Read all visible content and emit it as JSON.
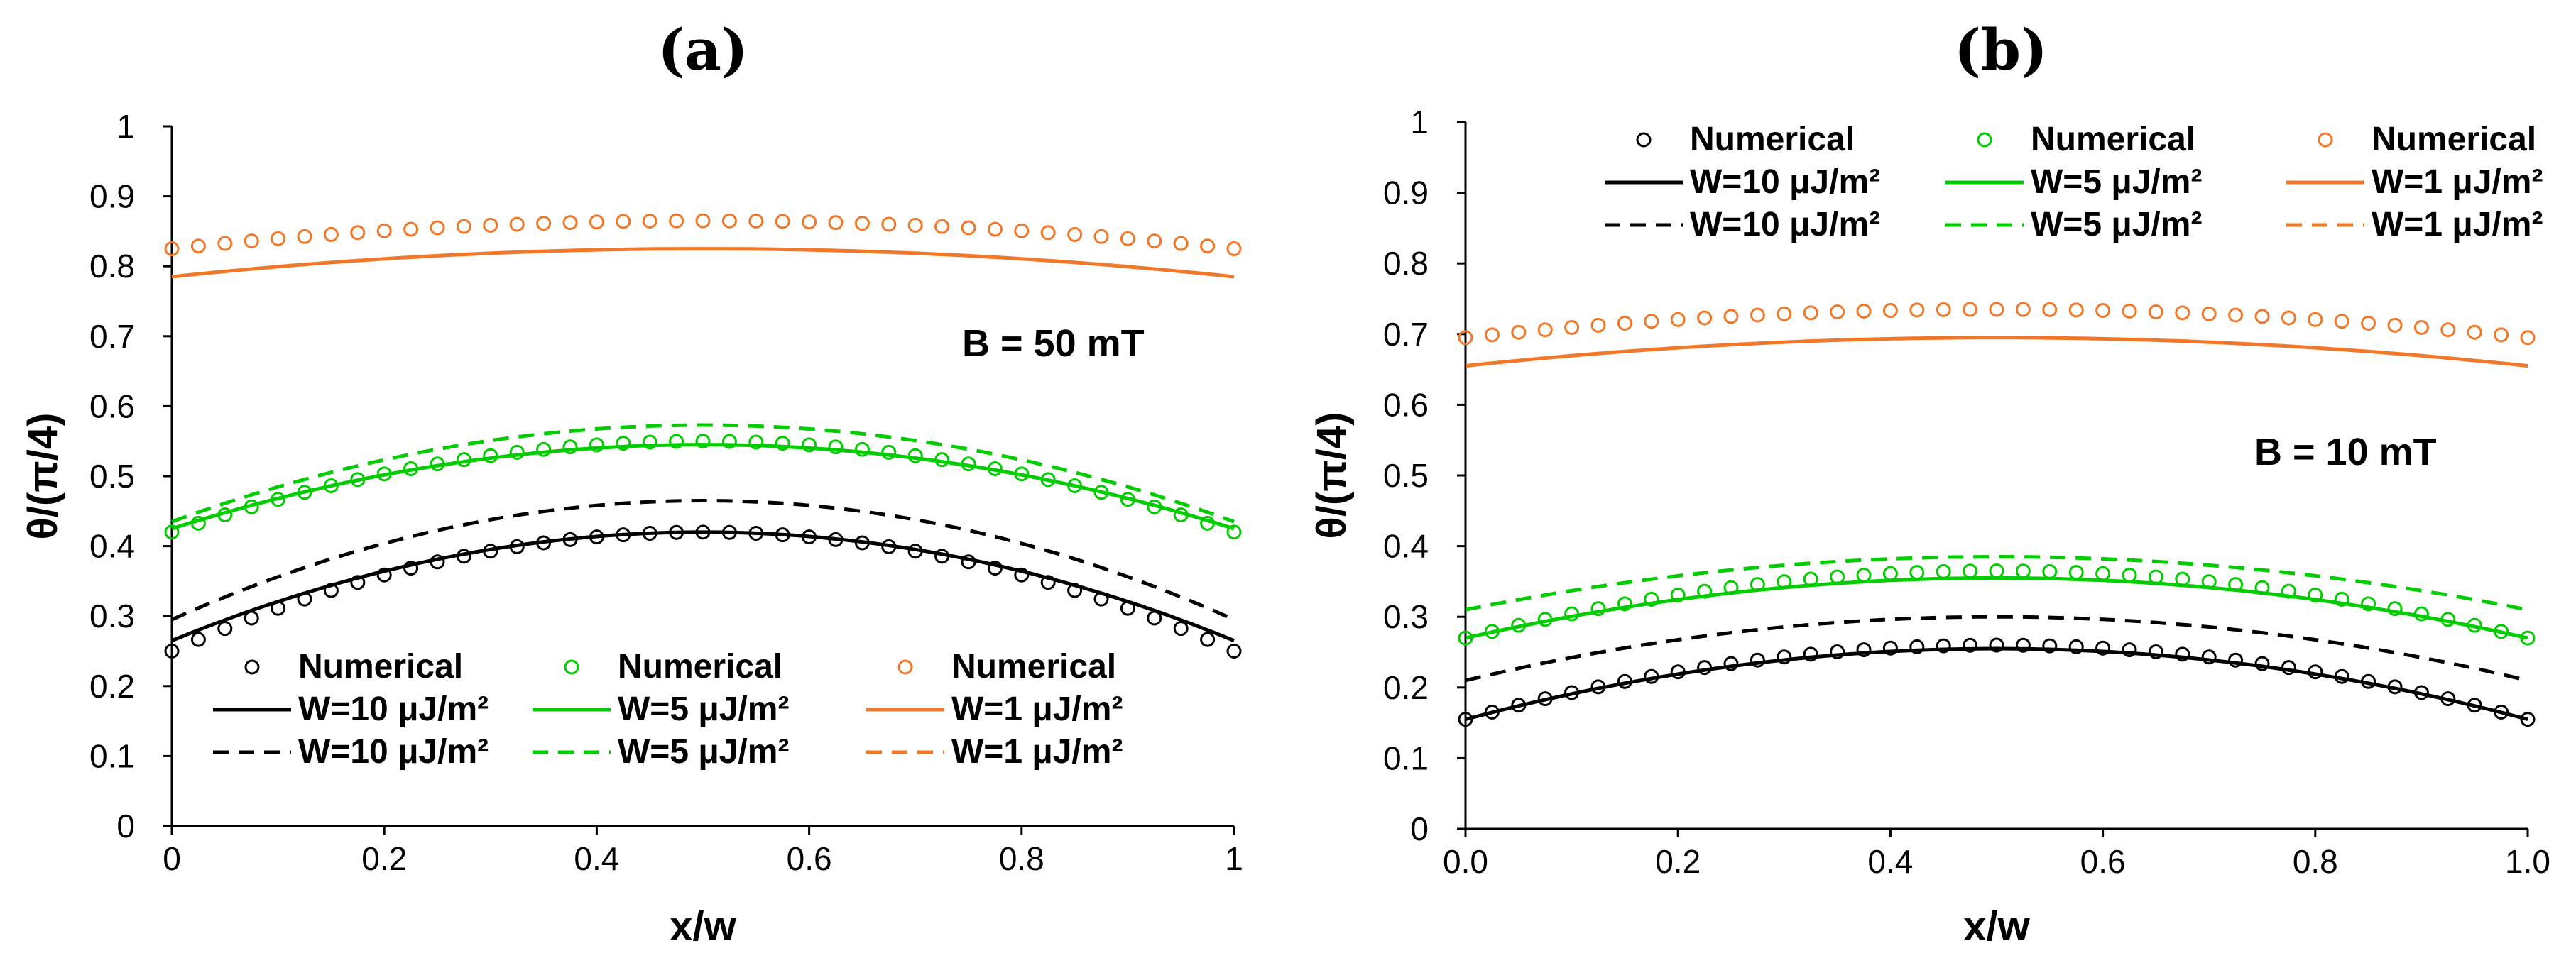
{
  "colors": {
    "black": "#000000",
    "green": "#00cc00",
    "orange": "#f07828"
  },
  "chart_data": [
    {
      "type": "line",
      "panel_label": "(a)",
      "annotation": "B = 50 mT",
      "xlabel": "x/w",
      "ylabel": "θ/(π/4)",
      "xlim": [
        0,
        1
      ],
      "ylim": [
        0,
        1
      ],
      "x_ticks": [
        "0",
        "0.2",
        "0.4",
        "0.6",
        "0.8",
        "1"
      ],
      "y_ticks": [
        "0",
        "0.1",
        "0.2",
        "0.3",
        "0.4",
        "0.5",
        "0.6",
        "0.7",
        "0.8",
        "0.9",
        "1"
      ],
      "grid": false,
      "legend_position": "bottom",
      "legend": [
        [
          "Numerical",
          "Numerical",
          "Numerical"
        ],
        [
          "W=10 μJ/m²",
          "W=5 μJ/m²",
          "W=1 μJ/m²"
        ],
        [
          "W=10 μJ/m²",
          "W=5 μJ/m²",
          "W=1 μJ/m²"
        ]
      ],
      "series": [
        {
          "name": "Numerical",
          "color": "black",
          "style": "markers",
          "edge": 0.25,
          "peak": 0.42
        },
        {
          "name": "W=10 μJ/m²",
          "color": "black",
          "style": "solid",
          "edge": 0.265,
          "peak": 0.42
        },
        {
          "name": "W=10 μJ/m²",
          "color": "black",
          "style": "dashed",
          "edge": 0.295,
          "peak": 0.465
        },
        {
          "name": "Numerical",
          "color": "green",
          "style": "markers",
          "edge": 0.42,
          "peak": 0.55
        },
        {
          "name": "W=5 μJ/m²",
          "color": "green",
          "style": "solid",
          "edge": 0.425,
          "peak": 0.545
        },
        {
          "name": "W=5 μJ/m²",
          "color": "green",
          "style": "dashed",
          "edge": 0.435,
          "peak": 0.573
        },
        {
          "name": "Numerical",
          "color": "orange",
          "style": "markers",
          "edge": 0.825,
          "peak": 0.865
        },
        {
          "name": "W=1 μJ/m²",
          "color": "orange",
          "style": "solid",
          "edge": 0.785,
          "peak": 0.825
        }
      ]
    },
    {
      "type": "line",
      "panel_label": "(b)",
      "annotation": "B = 10 mT",
      "xlabel": "x/w",
      "ylabel": "θ/(π/4)",
      "xlim": [
        0,
        1
      ],
      "ylim": [
        0,
        1
      ],
      "x_ticks": [
        "0.0",
        "0.2",
        "0.4",
        "0.6",
        "0.8",
        "1.0"
      ],
      "y_ticks": [
        "0",
        "0.1",
        "0.2",
        "0.3",
        "0.4",
        "0.5",
        "0.6",
        "0.7",
        "0.8",
        "0.9",
        "1"
      ],
      "grid": false,
      "legend_position": "top",
      "legend": [
        [
          "Numerical",
          "Numerical",
          "Numerical"
        ],
        [
          "W=10 μJ/m²",
          "W=5 μJ/m²",
          "W=1 μJ/m²"
        ],
        [
          "W=10 μJ/m²",
          "W=5 μJ/m²",
          "W=1 μJ/m²"
        ]
      ],
      "series": [
        {
          "name": "Numerical",
          "color": "black",
          "style": "markers",
          "edge": 0.155,
          "peak": 0.26
        },
        {
          "name": "W=10 μJ/m²",
          "color": "black",
          "style": "solid",
          "edge": 0.155,
          "peak": 0.255
        },
        {
          "name": "W=10 μJ/m²",
          "color": "black",
          "style": "dashed",
          "edge": 0.21,
          "peak": 0.3
        },
        {
          "name": "Numerical",
          "color": "green",
          "style": "markers",
          "edge": 0.27,
          "peak": 0.365
        },
        {
          "name": "W=5 μJ/m²",
          "color": "green",
          "style": "solid",
          "edge": 0.27,
          "peak": 0.355
        },
        {
          "name": "W=5 μJ/m²",
          "color": "green",
          "style": "dashed",
          "edge": 0.31,
          "peak": 0.385
        },
        {
          "name": "Numerical",
          "color": "orange",
          "style": "markers",
          "edge": 0.695,
          "peak": 0.735
        },
        {
          "name": "W=1 μJ/m²",
          "color": "orange",
          "style": "solid",
          "edge": 0.655,
          "peak": 0.695
        }
      ]
    }
  ]
}
